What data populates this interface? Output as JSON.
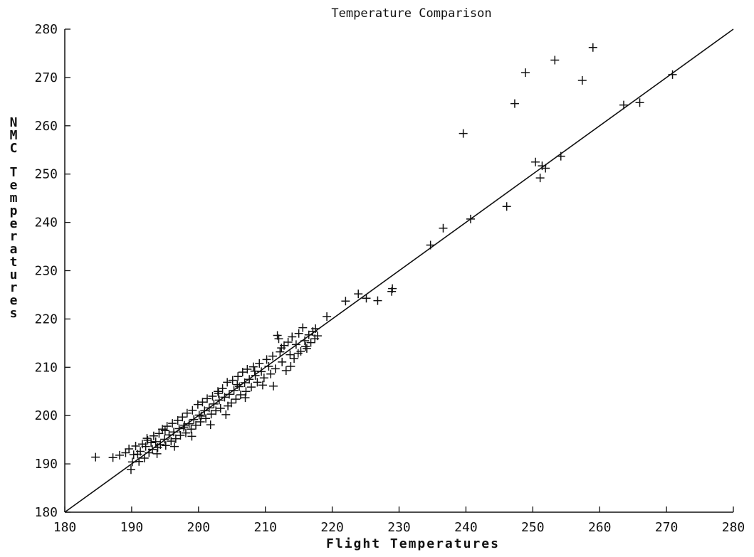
{
  "chart_data": {
    "type": "scatter",
    "title": "Temperature Comparison",
    "xlabel": "Flight Temperatures",
    "ylabel": "NMC Temperatures",
    "xlim": [
      180,
      280
    ],
    "ylim": [
      180,
      280
    ],
    "xticks": [
      "180",
      "190",
      "200",
      "210",
      "220",
      "230",
      "240",
      "250",
      "260",
      "270",
      "280"
    ],
    "yticks": [
      "180",
      "190",
      "200",
      "210",
      "220",
      "230",
      "240",
      "250",
      "260",
      "270",
      "280"
    ],
    "grid": false,
    "legend": "none",
    "reference_line": {
      "from": [
        180,
        180
      ],
      "to": [
        280,
        280
      ]
    },
    "marker": "plus",
    "series": [
      {
        "points": [
          [
            184.6,
            191.4
          ],
          [
            187.2,
            191.3
          ],
          [
            188.2,
            191.8
          ],
          [
            189.1,
            192.3
          ],
          [
            189.6,
            193.1
          ],
          [
            189.9,
            188.8
          ],
          [
            190.1,
            190.4
          ],
          [
            190.3,
            191.9
          ],
          [
            190.6,
            193.7
          ],
          [
            190.9,
            192.0
          ],
          [
            191.1,
            190.5
          ],
          [
            191.3,
            192.6
          ],
          [
            191.6,
            194.1
          ],
          [
            191.9,
            191.2
          ],
          [
            192.1,
            193.6
          ],
          [
            192.3,
            195.3
          ],
          [
            192.6,
            192.3
          ],
          [
            192.9,
            194.4
          ],
          [
            193.1,
            193.0
          ],
          [
            193.3,
            195.8
          ],
          [
            193.6,
            194.6
          ],
          [
            193.9,
            193.4
          ],
          [
            194.1,
            196.3
          ],
          [
            194.3,
            194.0
          ],
          [
            194.6,
            197.2
          ],
          [
            194.9,
            195.1
          ],
          [
            195.1,
            193.8
          ],
          [
            195.3,
            197.8
          ],
          [
            195.6,
            196.0
          ],
          [
            195.9,
            194.7
          ],
          [
            196.1,
            198.4
          ],
          [
            196.3,
            196.6
          ],
          [
            196.6,
            195.2
          ],
          [
            196.9,
            199.0
          ],
          [
            197.1,
            197.3
          ],
          [
            197.3,
            195.9
          ],
          [
            197.6,
            199.7
          ],
          [
            197.9,
            198.0
          ],
          [
            198.1,
            196.4
          ],
          [
            198.3,
            200.5
          ],
          [
            198.6,
            198.3
          ],
          [
            198.9,
            197.2
          ],
          [
            199.1,
            201.1
          ],
          [
            199.3,
            199.2
          ],
          [
            199.6,
            198.0
          ],
          [
            199.9,
            202.3
          ],
          [
            200.1,
            200.1
          ],
          [
            200.3,
            198.7
          ],
          [
            200.6,
            202.8
          ],
          [
            200.9,
            201.0
          ],
          [
            201.1,
            199.4
          ],
          [
            201.3,
            203.5
          ],
          [
            201.6,
            201.6
          ],
          [
            201.9,
            200.3
          ],
          [
            202.1,
            204.0
          ],
          [
            202.3,
            202.4
          ],
          [
            202.6,
            201.0
          ],
          [
            202.9,
            205.0
          ],
          [
            203.1,
            203.2
          ],
          [
            203.3,
            201.5
          ],
          [
            203.6,
            205.6
          ],
          [
            203.9,
            203.8
          ],
          [
            204.1,
            200.2
          ],
          [
            204.3,
            206.9
          ],
          [
            204.6,
            204.4
          ],
          [
            204.9,
            202.6
          ],
          [
            205.1,
            207.3
          ],
          [
            205.3,
            205.2
          ],
          [
            205.6,
            203.4
          ],
          [
            205.9,
            208.1
          ],
          [
            206.1,
            206.0
          ],
          [
            206.3,
            204.3
          ],
          [
            206.6,
            209.0
          ],
          [
            206.9,
            206.8
          ],
          [
            207.1,
            205.0
          ],
          [
            207.3,
            209.6
          ],
          [
            207.6,
            207.5
          ],
          [
            207.9,
            205.9
          ],
          [
            208.2,
            210.1
          ],
          [
            208.5,
            208.3
          ],
          [
            208.8,
            206.9
          ],
          [
            209.1,
            210.8
          ],
          [
            209.4,
            209.1
          ],
          [
            209.8,
            207.8
          ],
          [
            210.2,
            211.6
          ],
          [
            210.5,
            210.2
          ],
          [
            210.8,
            208.6
          ],
          [
            211.1,
            212.3
          ],
          [
            211.5,
            209.7
          ],
          [
            211.8,
            216.6
          ],
          [
            212.0,
            215.9
          ],
          [
            212.2,
            213.2
          ],
          [
            212.5,
            211.1
          ],
          [
            212.8,
            214.5
          ],
          [
            213.1,
            209.3
          ],
          [
            213.4,
            215.2
          ],
          [
            213.7,
            212.6
          ],
          [
            214.0,
            216.3
          ],
          [
            214.3,
            211.8
          ],
          [
            214.6,
            214.7
          ],
          [
            215.0,
            217.0
          ],
          [
            215.3,
            213.3
          ],
          [
            215.6,
            218.2
          ],
          [
            215.9,
            215.5
          ],
          [
            216.2,
            213.9
          ],
          [
            216.5,
            216.7
          ],
          [
            216.8,
            215.1
          ],
          [
            217.1,
            217.4
          ],
          [
            217.4,
            215.9
          ],
          [
            217.8,
            216.5
          ],
          [
            219.2,
            220.5
          ],
          [
            222.0,
            223.7
          ],
          [
            223.9,
            225.2
          ],
          [
            225.1,
            224.3
          ],
          [
            226.8,
            223.8
          ],
          [
            228.9,
            225.7
          ],
          [
            229.0,
            226.3
          ],
          [
            234.7,
            235.3
          ],
          [
            236.6,
            238.8
          ],
          [
            239.6,
            258.4
          ],
          [
            240.7,
            240.7
          ],
          [
            246.1,
            243.3
          ],
          [
            247.3,
            264.6
          ],
          [
            248.9,
            271.0
          ],
          [
            250.4,
            252.5
          ],
          [
            251.1,
            249.2
          ],
          [
            251.4,
            251.7
          ],
          [
            251.9,
            251.2
          ],
          [
            253.3,
            273.6
          ],
          [
            254.2,
            253.7
          ],
          [
            257.4,
            269.4
          ],
          [
            259.0,
            276.2
          ],
          [
            263.6,
            264.3
          ],
          [
            266.0,
            264.8
          ],
          [
            270.9,
            270.6
          ],
          [
            192.4,
            194.9
          ],
          [
            193.8,
            192.1
          ],
          [
            195.0,
            196.9
          ],
          [
            196.4,
            193.6
          ],
          [
            197.8,
            197.6
          ],
          [
            199.0,
            195.7
          ],
          [
            200.4,
            199.9
          ],
          [
            201.8,
            198.1
          ],
          [
            203.0,
            204.6
          ],
          [
            204.4,
            202.0
          ],
          [
            205.8,
            206.4
          ],
          [
            207.0,
            203.7
          ],
          [
            208.4,
            209.2
          ],
          [
            209.6,
            206.3
          ],
          [
            211.2,
            206.1
          ],
          [
            212.4,
            214.0
          ],
          [
            213.8,
            210.2
          ],
          [
            214.9,
            212.9
          ],
          [
            216.0,
            214.3
          ],
          [
            217.5,
            218.0
          ]
        ]
      }
    ]
  }
}
